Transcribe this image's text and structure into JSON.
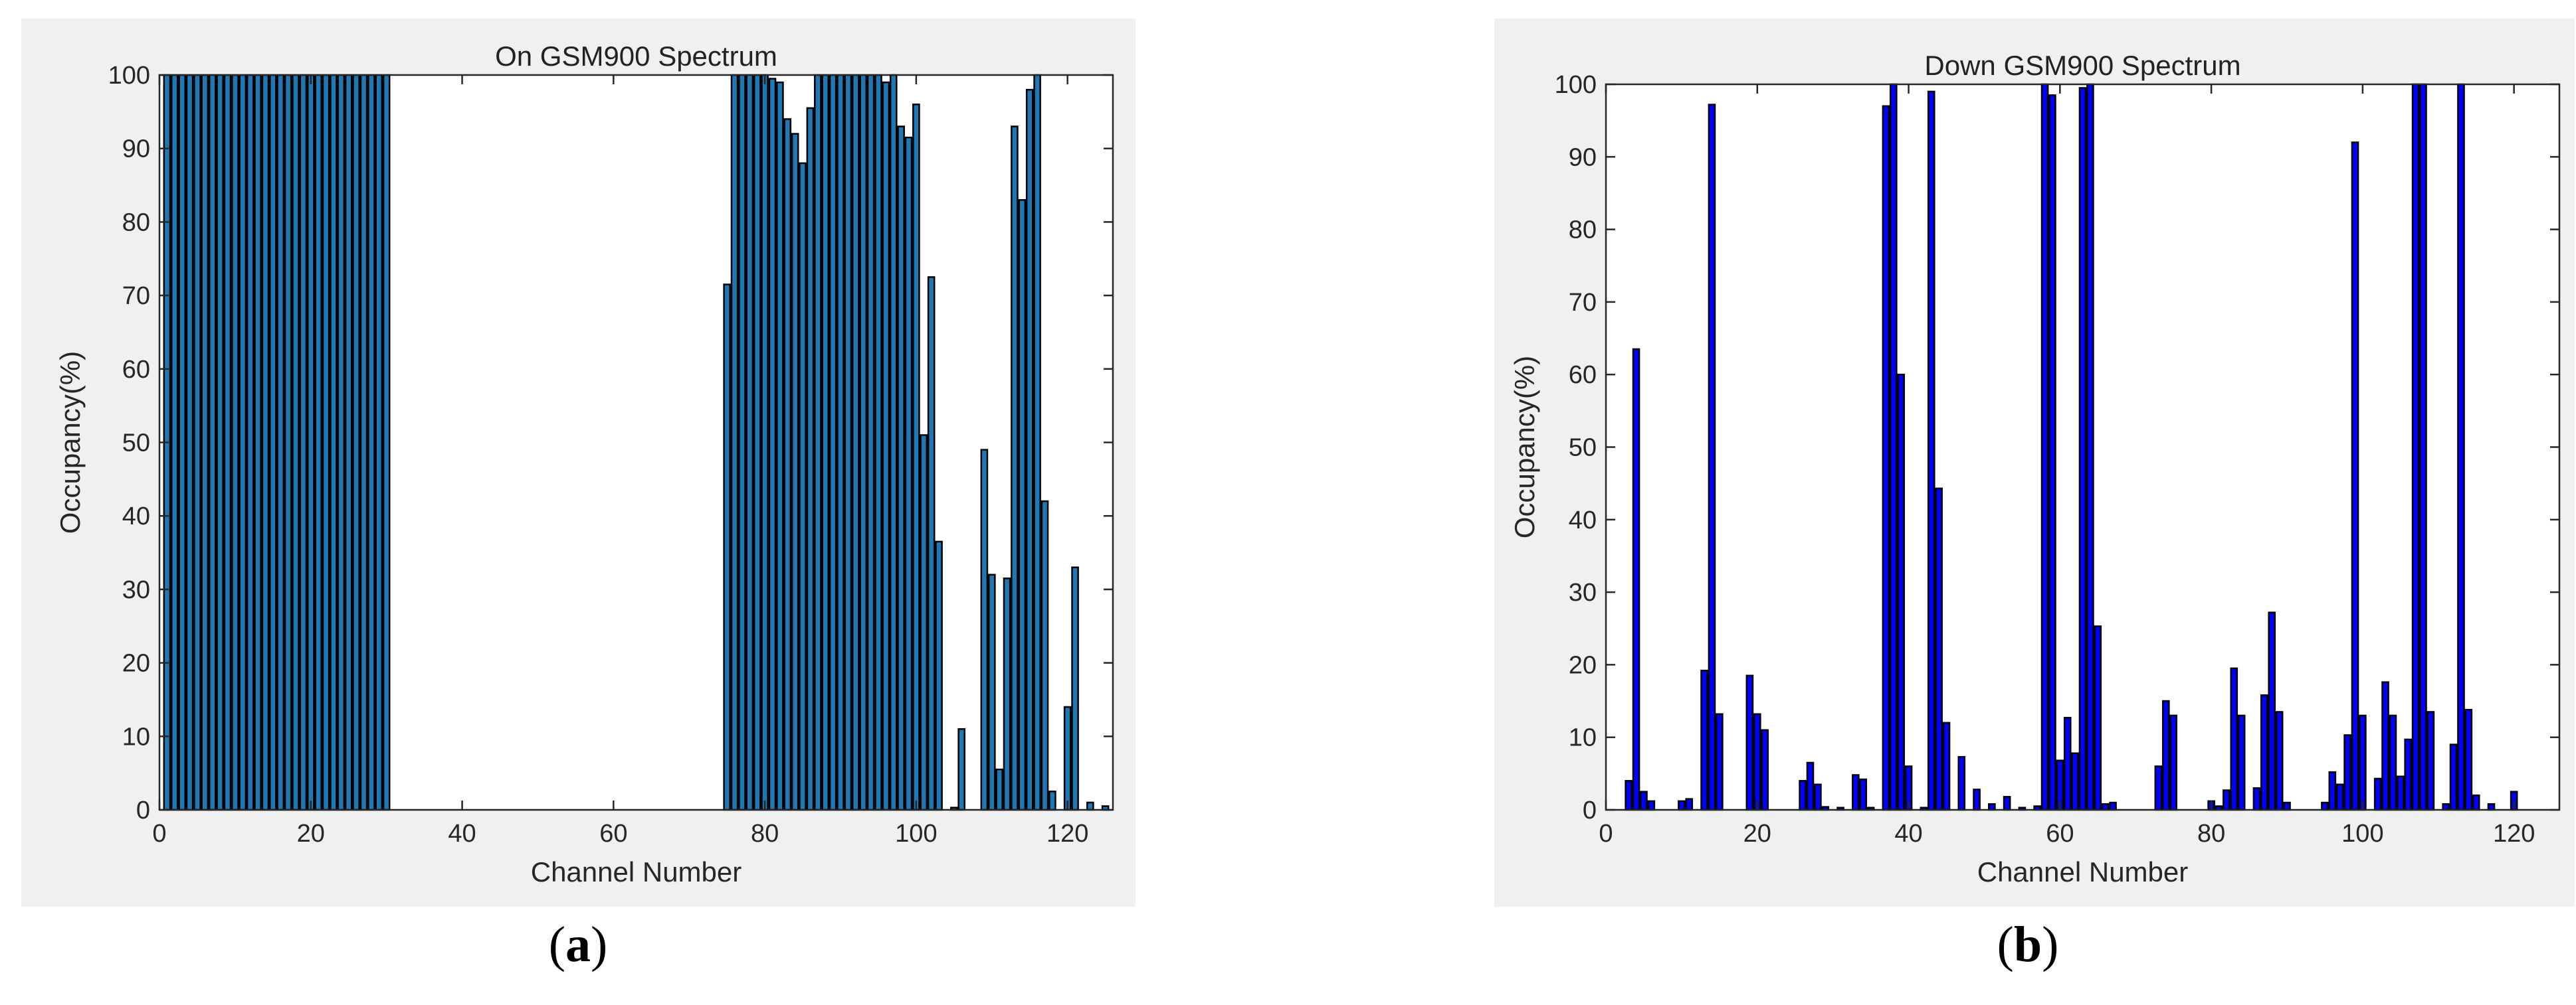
{
  "panels": [
    {
      "label_open": "(",
      "label_letter": "a",
      "label_close": ")"
    },
    {
      "label_open": "(",
      "label_letter": "b",
      "label_close": ")"
    }
  ],
  "colors": {
    "panel_bg": "#f0f0f0",
    "axes_bg": "#ffffff",
    "bar_a": "#1f77b4",
    "bar_b": "#0000ff",
    "edge": "#000000"
  },
  "chart_data": [
    {
      "type": "bar",
      "title": "On GSM900 Spectrum",
      "xlabel": "Channel Number",
      "ylabel": "Occupancy(%)",
      "xlim": [
        0,
        126
      ],
      "ylim": [
        0,
        100
      ],
      "xticks": [
        0,
        20,
        40,
        60,
        80,
        100,
        120
      ],
      "yticks": [
        0,
        10,
        20,
        30,
        40,
        50,
        60,
        70,
        80,
        90,
        100
      ],
      "grid": false,
      "bar_color": "#1f77b4",
      "x": [
        1,
        2,
        3,
        4,
        5,
        6,
        7,
        8,
        9,
        10,
        11,
        12,
        13,
        14,
        15,
        16,
        17,
        18,
        19,
        20,
        21,
        22,
        23,
        24,
        25,
        26,
        27,
        28,
        29,
        30,
        75,
        76,
        77,
        78,
        79,
        80,
        81,
        82,
        83,
        84,
        85,
        86,
        87,
        88,
        89,
        90,
        91,
        92,
        93,
        94,
        95,
        96,
        97,
        98,
        99,
        100,
        101,
        102,
        103,
        104,
        105,
        106,
        107,
        108,
        109,
        110,
        111,
        112,
        113,
        114,
        115,
        116,
        117,
        118,
        119,
        120,
        121,
        122,
        123,
        124,
        125
      ],
      "values": [
        100,
        100,
        100,
        100,
        100,
        100,
        100,
        100,
        100,
        100,
        100,
        100,
        100,
        100,
        100,
        100,
        100,
        100,
        100,
        100,
        100,
        100,
        100,
        100,
        100,
        100,
        100,
        100,
        100,
        100,
        71.5,
        100,
        100,
        100,
        100,
        100,
        99.5,
        99,
        94,
        92,
        88,
        95.5,
        100,
        100,
        100,
        100,
        100,
        100,
        100,
        100,
        100,
        99,
        100,
        93,
        91.5,
        96,
        51,
        72.5,
        36.5,
        0,
        0.3,
        11,
        0,
        0,
        49,
        32,
        5.5,
        31.5,
        93,
        83,
        98,
        100,
        42,
        2.5,
        0,
        14,
        33,
        0,
        1,
        0,
        0.5
      ]
    },
    {
      "type": "bar",
      "title": "Down GSM900 Spectrum",
      "xlabel": "Channel Number",
      "ylabel": "Occupancy(%)",
      "xlim": [
        0,
        126
      ],
      "ylim": [
        0,
        100
      ],
      "xticks": [
        0,
        20,
        40,
        60,
        80,
        100,
        120
      ],
      "yticks": [
        0,
        10,
        20,
        30,
        40,
        50,
        60,
        70,
        80,
        90,
        100
      ],
      "grid": false,
      "bar_color": "#0000ff",
      "x": [
        3,
        4,
        5,
        6,
        10,
        11,
        13,
        14,
        15,
        19,
        20,
        21,
        26,
        27,
        28,
        29,
        31,
        33,
        34,
        35,
        37,
        38,
        39,
        40,
        42,
        43,
        44,
        45,
        47,
        49,
        51,
        53,
        55,
        57,
        58,
        59,
        60,
        61,
        62,
        63,
        64,
        65,
        66,
        67,
        73,
        74,
        75,
        80,
        81,
        82,
        83,
        84,
        86,
        87,
        88,
        89,
        90,
        95,
        96,
        97,
        98,
        99,
        100,
        102,
        103,
        104,
        105,
        106,
        107,
        108,
        109,
        111,
        112,
        113,
        114,
        115,
        117,
        118,
        120,
        121
      ],
      "values": [
        4,
        63.5,
        2.5,
        1.2,
        1.2,
        1.5,
        19.2,
        97.2,
        13.2,
        18.5,
        13.2,
        11,
        4,
        6.5,
        3.5,
        0.4,
        0.3,
        4.8,
        4.2,
        0.3,
        97,
        100,
        60,
        6,
        0.3,
        99,
        44.3,
        12,
        7.3,
        2.8,
        0.8,
        1.8,
        0.3,
        0.5,
        100,
        98.5,
        6.8,
        12.7,
        7.8,
        99.5,
        100,
        25.3,
        0.8,
        1,
        6,
        15,
        13,
        1.2,
        0.5,
        2.7,
        19.5,
        13,
        3,
        15.8,
        27.2,
        13.5,
        1,
        1,
        5.2,
        3.5,
        10.3,
        92,
        13,
        4.3,
        17.6,
        13,
        4.6,
        9.7,
        100,
        100,
        13.5,
        0.8,
        9,
        100,
        13.8,
        2,
        0.8,
        0,
        2.5,
        0
      ]
    }
  ]
}
